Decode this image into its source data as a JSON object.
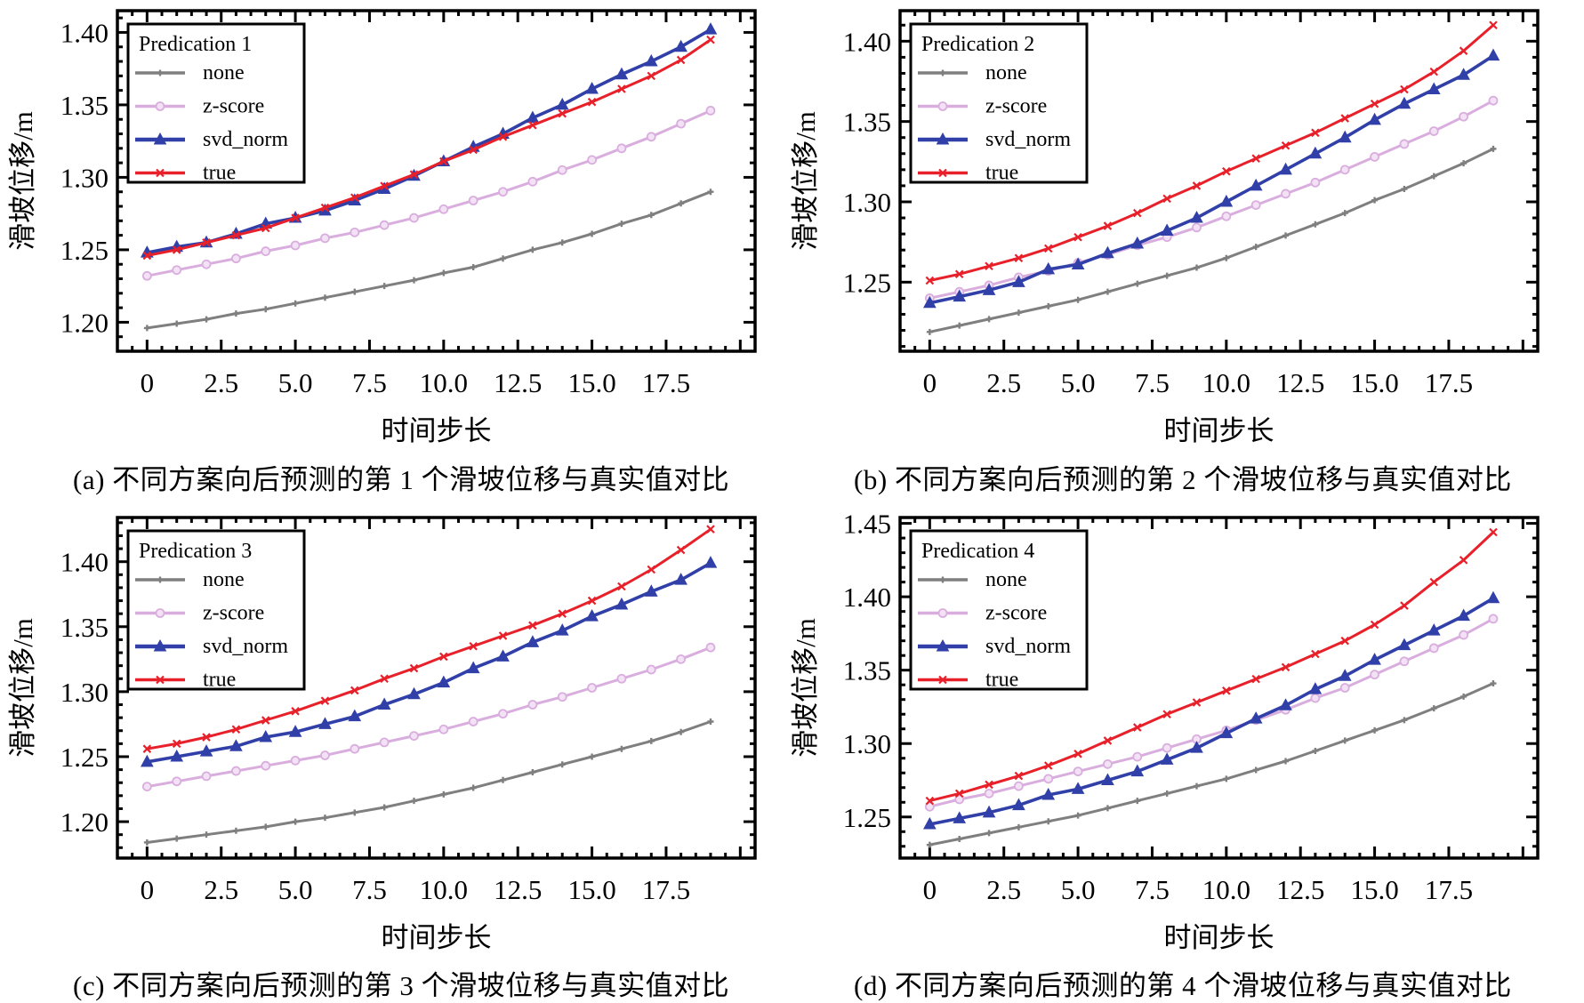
{
  "chart_data": [
    {
      "type": "line",
      "panel_id": "a",
      "title": "Predication 1",
      "caption": "(a) 不同方案向后预测的第 1 个滑坡位移与真实值对比",
      "xlabel": "时间步长",
      "ylabel": "滑坡位移/m",
      "x": [
        0,
        1,
        2,
        3,
        4,
        5,
        6,
        7,
        8,
        9,
        10,
        11,
        12,
        13,
        14,
        15,
        16,
        17,
        18,
        19
      ],
      "xlim": [
        -1,
        20.5
      ],
      "ylim": [
        1.18,
        1.415
      ],
      "xticks": [
        0,
        2.5,
        5.0,
        7.5,
        10.0,
        12.5,
        15.0,
        17.5
      ],
      "xtick_labels": [
        "0",
        "2.5",
        "5.0",
        "7.5",
        "10.0",
        "12.5",
        "15.0",
        "17.5"
      ],
      "yticks": [
        1.2,
        1.25,
        1.3,
        1.35,
        1.4
      ],
      "ytick_labels": [
        "1.20",
        "1.25",
        "1.30",
        "1.35",
        "1.40"
      ],
      "grid": false,
      "legend_position": "top-left",
      "series": [
        {
          "name": "none",
          "color": "#7f7f7f",
          "marker": "star",
          "values": [
            1.196,
            1.199,
            1.202,
            1.206,
            1.209,
            1.213,
            1.217,
            1.221,
            1.225,
            1.229,
            1.234,
            1.238,
            1.244,
            1.25,
            1.255,
            1.261,
            1.268,
            1.274,
            1.282,
            1.29
          ]
        },
        {
          "name": "z-score",
          "color": "#d9aede",
          "marker": "circle",
          "values": [
            1.232,
            1.236,
            1.24,
            1.244,
            1.249,
            1.253,
            1.258,
            1.262,
            1.267,
            1.272,
            1.278,
            1.284,
            1.29,
            1.297,
            1.305,
            1.312,
            1.32,
            1.328,
            1.337,
            1.346
          ]
        },
        {
          "name": "svd_norm",
          "color": "#3040a8",
          "marker": "triangle",
          "values": [
            1.248,
            1.252,
            1.255,
            1.261,
            1.268,
            1.272,
            1.277,
            1.284,
            1.292,
            1.301,
            1.311,
            1.321,
            1.33,
            1.341,
            1.35,
            1.361,
            1.371,
            1.38,
            1.39,
            1.402
          ]
        },
        {
          "name": "true",
          "color": "#e8202a",
          "marker": "x",
          "values": [
            1.246,
            1.25,
            1.255,
            1.26,
            1.265,
            1.272,
            1.279,
            1.286,
            1.294,
            1.302,
            1.311,
            1.319,
            1.328,
            1.336,
            1.344,
            1.352,
            1.361,
            1.37,
            1.381,
            1.395
          ]
        }
      ]
    },
    {
      "type": "line",
      "panel_id": "b",
      "title": "Predication 2",
      "caption": "(b) 不同方案向后预测的第 2 个滑坡位移与真实值对比",
      "xlabel": "时间步长",
      "ylabel": "滑坡位移/m",
      "x": [
        0,
        1,
        2,
        3,
        4,
        5,
        6,
        7,
        8,
        9,
        10,
        11,
        12,
        13,
        14,
        15,
        16,
        17,
        18,
        19
      ],
      "xlim": [
        -1,
        20.5
      ],
      "ylim": [
        1.207,
        1.419
      ],
      "xticks": [
        0,
        2.5,
        5.0,
        7.5,
        10.0,
        12.5,
        15.0,
        17.5
      ],
      "xtick_labels": [
        "0",
        "2.5",
        "5.0",
        "7.5",
        "10.0",
        "12.5",
        "15.0",
        "17.5"
      ],
      "yticks": [
        1.25,
        1.3,
        1.35,
        1.4
      ],
      "ytick_labels": [
        "1.25",
        "1.30",
        "1.35",
        "1.40"
      ],
      "grid": false,
      "legend_position": "top-left",
      "series": [
        {
          "name": "none",
          "color": "#7f7f7f",
          "marker": "star",
          "values": [
            1.219,
            1.223,
            1.227,
            1.231,
            1.235,
            1.239,
            1.244,
            1.249,
            1.254,
            1.259,
            1.265,
            1.272,
            1.279,
            1.286,
            1.293,
            1.301,
            1.308,
            1.316,
            1.324,
            1.333
          ]
        },
        {
          "name": "z-score",
          "color": "#d9aede",
          "marker": "circle",
          "values": [
            1.24,
            1.244,
            1.248,
            1.253,
            1.257,
            1.262,
            1.267,
            1.273,
            1.278,
            1.284,
            1.291,
            1.298,
            1.305,
            1.312,
            1.32,
            1.328,
            1.336,
            1.344,
            1.353,
            1.363
          ]
        },
        {
          "name": "svd_norm",
          "color": "#3040a8",
          "marker": "triangle",
          "values": [
            1.237,
            1.241,
            1.245,
            1.25,
            1.258,
            1.261,
            1.268,
            1.274,
            1.282,
            1.29,
            1.3,
            1.31,
            1.32,
            1.33,
            1.34,
            1.351,
            1.361,
            1.37,
            1.379,
            1.391
          ]
        },
        {
          "name": "true",
          "color": "#e8202a",
          "marker": "x",
          "values": [
            1.251,
            1.255,
            1.26,
            1.265,
            1.271,
            1.278,
            1.285,
            1.293,
            1.302,
            1.31,
            1.319,
            1.327,
            1.335,
            1.343,
            1.352,
            1.361,
            1.37,
            1.381,
            1.394,
            1.41
          ]
        }
      ]
    },
    {
      "type": "line",
      "panel_id": "c",
      "title": "Predication 3",
      "caption": "(c) 不同方案向后预测的第 3 个滑坡位移与真实值对比",
      "xlabel": "时间步长",
      "ylabel": "滑坡位移/m",
      "x": [
        0,
        1,
        2,
        3,
        4,
        5,
        6,
        7,
        8,
        9,
        10,
        11,
        12,
        13,
        14,
        15,
        16,
        17,
        18,
        19
      ],
      "xlim": [
        -1,
        20.5
      ],
      "ylim": [
        1.172,
        1.434
      ],
      "xticks": [
        0,
        2.5,
        5.0,
        7.5,
        10.0,
        12.5,
        15.0,
        17.5
      ],
      "xtick_labels": [
        "0",
        "2.5",
        "5.0",
        "7.5",
        "10.0",
        "12.5",
        "15.0",
        "17.5"
      ],
      "yticks": [
        1.2,
        1.25,
        1.3,
        1.35,
        1.4
      ],
      "ytick_labels": [
        "1.20",
        "1.25",
        "1.30",
        "1.35",
        "1.40"
      ],
      "grid": false,
      "legend_position": "top-left",
      "series": [
        {
          "name": "none",
          "color": "#7f7f7f",
          "marker": "star",
          "values": [
            1.184,
            1.187,
            1.19,
            1.193,
            1.196,
            1.2,
            1.203,
            1.207,
            1.211,
            1.216,
            1.221,
            1.226,
            1.232,
            1.238,
            1.244,
            1.25,
            1.256,
            1.262,
            1.269,
            1.277
          ]
        },
        {
          "name": "z-score",
          "color": "#d9aede",
          "marker": "circle",
          "values": [
            1.227,
            1.231,
            1.235,
            1.239,
            1.243,
            1.247,
            1.251,
            1.256,
            1.261,
            1.266,
            1.271,
            1.277,
            1.283,
            1.29,
            1.296,
            1.303,
            1.31,
            1.317,
            1.325,
            1.334
          ]
        },
        {
          "name": "svd_norm",
          "color": "#3040a8",
          "marker": "triangle",
          "values": [
            1.246,
            1.25,
            1.254,
            1.258,
            1.265,
            1.269,
            1.275,
            1.281,
            1.29,
            1.298,
            1.307,
            1.318,
            1.327,
            1.338,
            1.347,
            1.358,
            1.367,
            1.377,
            1.386,
            1.399
          ]
        },
        {
          "name": "true",
          "color": "#e8202a",
          "marker": "x",
          "values": [
            1.256,
            1.26,
            1.265,
            1.271,
            1.278,
            1.285,
            1.293,
            1.301,
            1.31,
            1.318,
            1.327,
            1.335,
            1.343,
            1.351,
            1.36,
            1.37,
            1.381,
            1.394,
            1.409,
            1.425
          ]
        }
      ]
    },
    {
      "type": "line",
      "panel_id": "d",
      "title": "Predication 4",
      "caption": "(d) 不同方案向后预测的第 4 个滑坡位移与真实值对比",
      "xlabel": "时间步长",
      "ylabel": "滑坡位移/m",
      "x": [
        0,
        1,
        2,
        3,
        4,
        5,
        6,
        7,
        8,
        9,
        10,
        11,
        12,
        13,
        14,
        15,
        16,
        17,
        18,
        19
      ],
      "xlim": [
        -1,
        20.5
      ],
      "ylim": [
        1.222,
        1.454
      ],
      "xticks": [
        0,
        2.5,
        5.0,
        7.5,
        10.0,
        12.5,
        15.0,
        17.5
      ],
      "xtick_labels": [
        "0",
        "2.5",
        "5.0",
        "7.5",
        "10.0",
        "12.5",
        "15.0",
        "17.5"
      ],
      "yticks": [
        1.25,
        1.3,
        1.35,
        1.4,
        1.45
      ],
      "ytick_labels": [
        "1.25",
        "1.30",
        "1.35",
        "1.40",
        "1.45"
      ],
      "grid": false,
      "legend_position": "top-left",
      "series": [
        {
          "name": "none",
          "color": "#7f7f7f",
          "marker": "star",
          "values": [
            1.231,
            1.235,
            1.239,
            1.243,
            1.247,
            1.251,
            1.256,
            1.261,
            1.266,
            1.271,
            1.276,
            1.282,
            1.288,
            1.295,
            1.302,
            1.309,
            1.316,
            1.324,
            1.332,
            1.341
          ]
        },
        {
          "name": "z-score",
          "color": "#d9aede",
          "marker": "circle",
          "values": [
            1.257,
            1.262,
            1.266,
            1.271,
            1.276,
            1.281,
            1.286,
            1.291,
            1.297,
            1.303,
            1.309,
            1.316,
            1.323,
            1.331,
            1.338,
            1.347,
            1.356,
            1.365,
            1.374,
            1.385
          ]
        },
        {
          "name": "svd_norm",
          "color": "#3040a8",
          "marker": "triangle",
          "values": [
            1.245,
            1.249,
            1.253,
            1.258,
            1.265,
            1.269,
            1.275,
            1.281,
            1.289,
            1.297,
            1.307,
            1.317,
            1.326,
            1.337,
            1.346,
            1.357,
            1.367,
            1.377,
            1.387,
            1.399
          ]
        },
        {
          "name": "true",
          "color": "#e8202a",
          "marker": "x",
          "values": [
            1.261,
            1.266,
            1.272,
            1.278,
            1.285,
            1.293,
            1.302,
            1.311,
            1.32,
            1.328,
            1.336,
            1.344,
            1.352,
            1.361,
            1.37,
            1.381,
            1.394,
            1.41,
            1.425,
            1.444
          ]
        }
      ]
    }
  ]
}
